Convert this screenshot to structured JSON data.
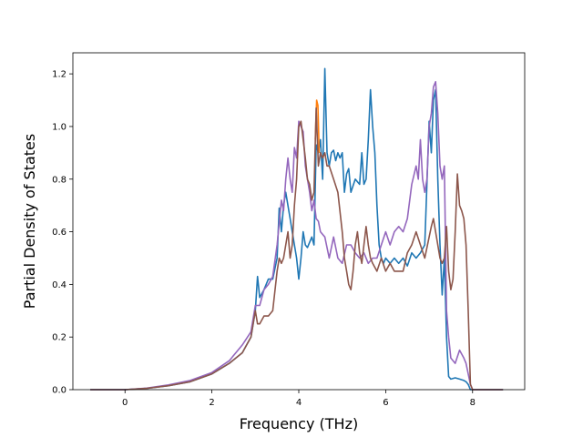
{
  "chart_data": {
    "type": "line",
    "title": "",
    "xlabel": "Frequency (THz)",
    "ylabel": "Partial Density of States",
    "xlim": [
      -1.2,
      9.2
    ],
    "ylim": [
      0,
      1.28
    ],
    "xticks": [
      0,
      2,
      4,
      6,
      8
    ],
    "xtick_labels": [
      "0",
      "2",
      "4",
      "6",
      "8"
    ],
    "yticks": [
      0.0,
      0.2,
      0.4,
      0.6,
      0.8,
      1.0,
      1.2
    ],
    "ytick_labels": [
      "0.0",
      "0.2",
      "0.4",
      "0.6",
      "0.8",
      "1.0",
      "1.2"
    ],
    "grid": false,
    "legend": "none",
    "series": [
      {
        "color": "#1f77b4",
        "x": [
          -0.8,
          0.0,
          0.5,
          1.0,
          1.5,
          2.0,
          2.4,
          2.7,
          2.9,
          3.0,
          3.05,
          3.1,
          3.2,
          3.3,
          3.4,
          3.5,
          3.55,
          3.6,
          3.65,
          3.7,
          3.75,
          3.8,
          3.85,
          3.9,
          3.95,
          4.0,
          4.05,
          4.1,
          4.15,
          4.2,
          4.3,
          4.35,
          4.4,
          4.45,
          4.5,
          4.55,
          4.6,
          4.65,
          4.7,
          4.75,
          4.8,
          4.85,
          4.9,
          4.95,
          5.0,
          5.05,
          5.1,
          5.15,
          5.2,
          5.3,
          5.4,
          5.45,
          5.5,
          5.55,
          5.6,
          5.65,
          5.7,
          5.75,
          5.8,
          5.85,
          5.9,
          5.95,
          6.0,
          6.1,
          6.2,
          6.3,
          6.4,
          6.5,
          6.6,
          6.7,
          6.8,
          6.9,
          7.0,
          7.05,
          7.1,
          7.15,
          7.2,
          7.25,
          7.3,
          7.35,
          7.4,
          7.45,
          7.5,
          7.6,
          7.7,
          7.8,
          7.85,
          7.9,
          7.95,
          8.0,
          8.2,
          8.7
        ],
        "y": [
          0.0,
          0.0,
          0.005,
          0.015,
          0.03,
          0.06,
          0.1,
          0.14,
          0.2,
          0.3,
          0.43,
          0.35,
          0.38,
          0.42,
          0.42,
          0.5,
          0.69,
          0.6,
          0.7,
          0.75,
          0.7,
          0.65,
          0.6,
          0.55,
          0.5,
          0.42,
          0.5,
          0.6,
          0.55,
          0.54,
          0.58,
          0.55,
          0.93,
          0.9,
          0.95,
          0.8,
          1.22,
          0.9,
          0.85,
          0.9,
          0.91,
          0.87,
          0.9,
          0.88,
          0.9,
          0.75,
          0.82,
          0.84,
          0.75,
          0.8,
          0.78,
          0.9,
          0.78,
          0.8,
          0.95,
          1.14,
          1.0,
          0.9,
          0.7,
          0.55,
          0.5,
          0.48,
          0.5,
          0.48,
          0.5,
          0.48,
          0.5,
          0.47,
          0.52,
          0.5,
          0.52,
          0.55,
          1.02,
          0.9,
          1.1,
          1.14,
          0.8,
          0.55,
          0.36,
          0.5,
          0.2,
          0.05,
          0.04,
          0.045,
          0.04,
          0.035,
          0.03,
          0.02,
          0.0,
          0.0,
          0.0,
          0.0
        ]
      },
      {
        "color": "#ff7f0e",
        "x": [
          4.38,
          4.41,
          4.44,
          4.47
        ],
        "y": [
          0.95,
          1.1,
          1.08,
          0.9
        ]
      },
      {
        "color": "#9467bd",
        "x": [
          -0.8,
          0.0,
          0.5,
          1.0,
          1.5,
          2.0,
          2.4,
          2.7,
          2.9,
          3.0,
          3.1,
          3.2,
          3.3,
          3.4,
          3.5,
          3.6,
          3.65,
          3.7,
          3.75,
          3.8,
          3.85,
          3.9,
          3.95,
          4.0,
          4.05,
          4.1,
          4.15,
          4.2,
          4.25,
          4.3,
          4.35,
          4.4,
          4.45,
          4.5,
          4.6,
          4.7,
          4.8,
          4.9,
          5.0,
          5.1,
          5.2,
          5.3,
          5.4,
          5.5,
          5.6,
          5.7,
          5.8,
          5.9,
          6.0,
          6.1,
          6.2,
          6.3,
          6.4,
          6.5,
          6.6,
          6.7,
          6.75,
          6.8,
          6.85,
          6.9,
          6.95,
          7.0,
          7.05,
          7.1,
          7.15,
          7.2,
          7.25,
          7.3,
          7.35,
          7.4,
          7.45,
          7.5,
          7.6,
          7.7,
          7.8,
          7.85,
          7.9,
          7.95,
          8.0,
          8.2,
          8.7
        ],
        "y": [
          0.0,
          0.0,
          0.006,
          0.018,
          0.035,
          0.065,
          0.11,
          0.17,
          0.22,
          0.32,
          0.32,
          0.38,
          0.4,
          0.43,
          0.55,
          0.72,
          0.68,
          0.8,
          0.88,
          0.8,
          0.75,
          0.92,
          0.88,
          1.02,
          1.0,
          0.98,
          0.85,
          0.8,
          0.75,
          0.68,
          0.72,
          0.65,
          0.64,
          0.6,
          0.58,
          0.5,
          0.58,
          0.5,
          0.48,
          0.55,
          0.55,
          0.52,
          0.5,
          0.52,
          0.48,
          0.5,
          0.5,
          0.55,
          0.6,
          0.55,
          0.6,
          0.62,
          0.6,
          0.65,
          0.78,
          0.85,
          0.8,
          0.95,
          0.8,
          0.75,
          0.8,
          1.0,
          1.05,
          1.15,
          1.17,
          1.05,
          0.85,
          0.8,
          0.85,
          0.3,
          0.2,
          0.12,
          0.1,
          0.15,
          0.12,
          0.1,
          0.06,
          0.02,
          0.0,
          0.0,
          0.0
        ]
      },
      {
        "color": "#8c564b",
        "x": [
          -0.8,
          0.0,
          0.5,
          1.0,
          1.5,
          2.0,
          2.4,
          2.7,
          2.9,
          3.0,
          3.05,
          3.1,
          3.2,
          3.3,
          3.4,
          3.5,
          3.55,
          3.6,
          3.65,
          3.7,
          3.75,
          3.8,
          3.85,
          3.9,
          3.95,
          4.0,
          4.05,
          4.1,
          4.15,
          4.2,
          4.25,
          4.3,
          4.35,
          4.4,
          4.45,
          4.5,
          4.55,
          4.6,
          4.65,
          4.7,
          4.8,
          4.9,
          5.0,
          5.05,
          5.1,
          5.15,
          5.2,
          5.25,
          5.3,
          5.35,
          5.4,
          5.45,
          5.5,
          5.55,
          5.6,
          5.65,
          5.7,
          5.8,
          5.9,
          6.0,
          6.1,
          6.2,
          6.3,
          6.4,
          6.5,
          6.6,
          6.7,
          6.8,
          6.9,
          7.0,
          7.05,
          7.1,
          7.15,
          7.2,
          7.25,
          7.3,
          7.35,
          7.4,
          7.45,
          7.5,
          7.55,
          7.6,
          7.65,
          7.7,
          7.75,
          7.8,
          7.85,
          7.9,
          7.95,
          8.0,
          8.2,
          8.7
        ],
        "y": [
          0.0,
          0.0,
          0.005,
          0.015,
          0.03,
          0.06,
          0.1,
          0.14,
          0.2,
          0.3,
          0.25,
          0.25,
          0.28,
          0.28,
          0.3,
          0.45,
          0.5,
          0.48,
          0.5,
          0.55,
          0.6,
          0.5,
          0.55,
          0.7,
          0.8,
          1.0,
          1.02,
          0.95,
          0.88,
          0.8,
          0.78,
          0.72,
          0.75,
          1.07,
          0.85,
          0.9,
          0.88,
          0.9,
          0.85,
          0.85,
          0.8,
          0.75,
          0.6,
          0.5,
          0.45,
          0.4,
          0.38,
          0.45,
          0.55,
          0.6,
          0.52,
          0.48,
          0.55,
          0.62,
          0.55,
          0.5,
          0.48,
          0.45,
          0.5,
          0.45,
          0.48,
          0.45,
          0.45,
          0.45,
          0.52,
          0.55,
          0.6,
          0.55,
          0.5,
          0.58,
          0.62,
          0.65,
          0.6,
          0.55,
          0.5,
          0.48,
          0.5,
          0.62,
          0.45,
          0.38,
          0.42,
          0.6,
          0.82,
          0.7,
          0.68,
          0.65,
          0.55,
          0.3,
          0.02,
          0.0,
          0.0,
          0.0
        ]
      }
    ]
  }
}
